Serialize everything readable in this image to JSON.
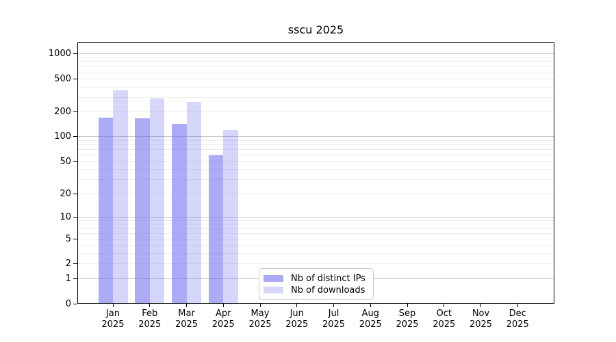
{
  "chart_data": {
    "type": "bar",
    "title": "sscu 2025",
    "x_categories": [
      {
        "month": "Jan",
        "year": "2025"
      },
      {
        "month": "Feb",
        "year": "2025"
      },
      {
        "month": "Mar",
        "year": "2025"
      },
      {
        "month": "Apr",
        "year": "2025"
      },
      {
        "month": "May",
        "year": "2025"
      },
      {
        "month": "Jun",
        "year": "2025"
      },
      {
        "month": "Jul",
        "year": "2025"
      },
      {
        "month": "Aug",
        "year": "2025"
      },
      {
        "month": "Sep",
        "year": "2025"
      },
      {
        "month": "Oct",
        "year": "2025"
      },
      {
        "month": "Nov",
        "year": "2025"
      },
      {
        "month": "Dec",
        "year": "2025"
      }
    ],
    "series": [
      {
        "name": "Nb of distinct IPs",
        "color": "#6666ee",
        "alpha": 0.55,
        "values": [
          171,
          166,
          144,
          60,
          null,
          null,
          null,
          null,
          null,
          null,
          null,
          null
        ]
      },
      {
        "name": "Nb of downloads",
        "color": "#6666ee",
        "alpha": 0.27,
        "values": [
          366,
          290,
          264,
          121,
          null,
          null,
          null,
          null,
          null,
          null,
          null,
          null
        ]
      }
    ],
    "y_ticks": [
      0,
      1,
      2,
      5,
      10,
      20,
      50,
      100,
      200,
      500,
      1000
    ],
    "y_scale": "log10(1+x)",
    "ylim": [
      0,
      1380
    ],
    "grid": "horizontal major and minor",
    "legend_position": "bottom center-left inside plot"
  }
}
